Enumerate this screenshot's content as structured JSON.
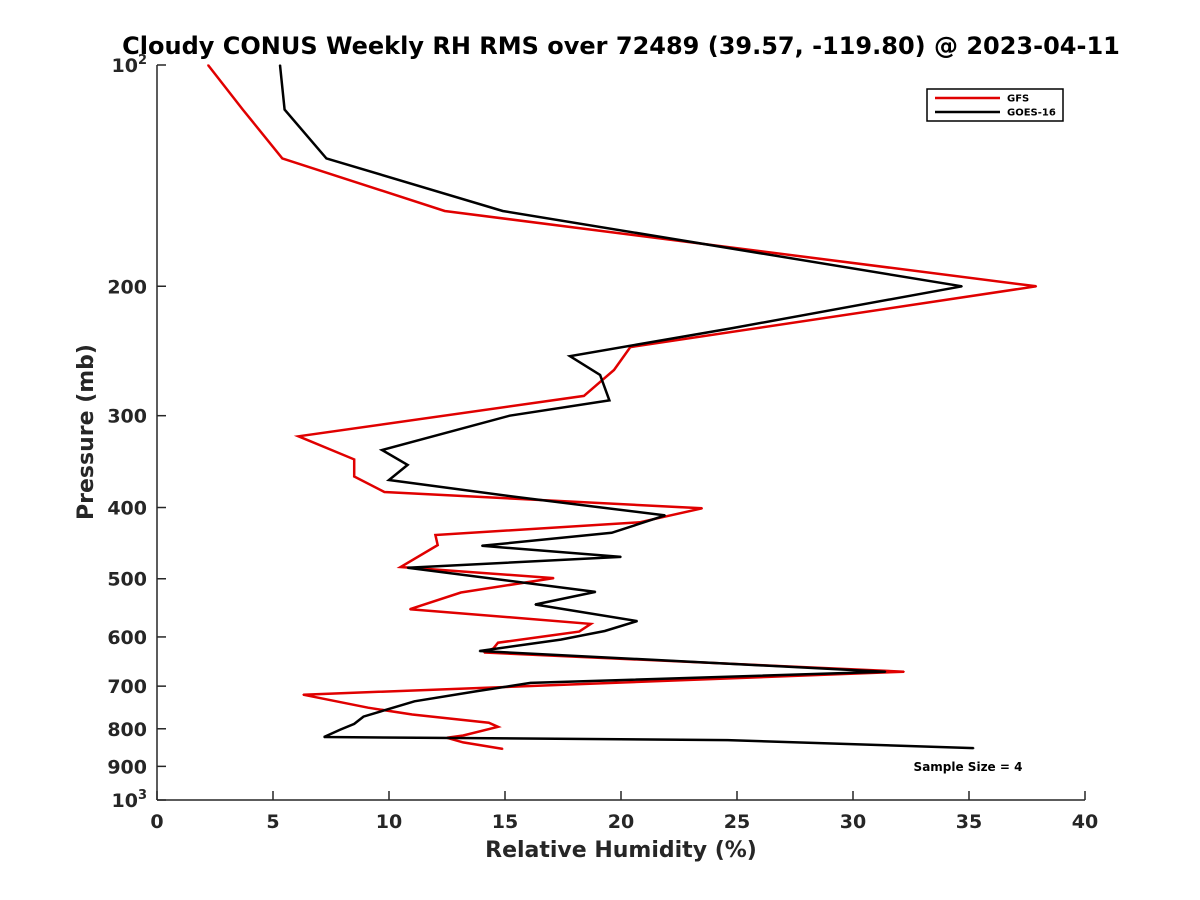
{
  "chart_data": {
    "type": "line",
    "title": "Cloudy CONUS Weekly RH RMS over 72489 (39.57, -119.80) @ 2023-04-11",
    "xlabel": "Relative Humidity (%)",
    "ylabel": "Pressure (mb)",
    "xlim": [
      0,
      40
    ],
    "ylim": [
      100,
      1000
    ],
    "y_scale": "log",
    "y_reversed": true,
    "x_ticks": [
      "0",
      "5",
      "10",
      "15",
      "20",
      "25",
      "30",
      "35",
      "40"
    ],
    "y_ticks": [
      {
        "value": 100,
        "base": "10",
        "exp": "2"
      },
      {
        "value": 200,
        "label": "200"
      },
      {
        "value": 300,
        "label": "300"
      },
      {
        "value": 400,
        "label": "400"
      },
      {
        "value": 500,
        "label": "500"
      },
      {
        "value": 600,
        "label": "600"
      },
      {
        "value": 700,
        "label": "700"
      },
      {
        "value": 800,
        "label": "800"
      },
      {
        "value": 900,
        "label": "900"
      },
      {
        "value": 1000,
        "base": "10",
        "exp": "3"
      }
    ],
    "grid": false,
    "legend_position": "top-right",
    "annotation": "Sample Size = 4",
    "series": [
      {
        "name": "GFS",
        "color": "#e00000",
        "points": [
          [
            2.2,
            100
          ],
          [
            3.7,
            115
          ],
          [
            5.4,
            134
          ],
          [
            12.4,
            158
          ],
          [
            37.9,
            200
          ],
          [
            20.4,
            242
          ],
          [
            19.7,
            260
          ],
          [
            18.4,
            282
          ],
          [
            6.1,
            320
          ],
          [
            8.5,
            344
          ],
          [
            8.5,
            363
          ],
          [
            9.8,
            381
          ],
          [
            23.5,
            401
          ],
          [
            20.8,
            419
          ],
          [
            12.0,
            436
          ],
          [
            12.1,
            450
          ],
          [
            10.5,
            482
          ],
          [
            17.1,
            499
          ],
          [
            13.1,
            522
          ],
          [
            10.9,
            550
          ],
          [
            18.7,
            576
          ],
          [
            18.2,
            590
          ],
          [
            14.7,
            611
          ],
          [
            14.5,
            622
          ],
          [
            14.1,
            630
          ],
          [
            32.2,
            669
          ],
          [
            6.3,
            719
          ],
          [
            9.1,
            749
          ],
          [
            11.0,
            765
          ],
          [
            14.3,
            785
          ],
          [
            14.7,
            795
          ],
          [
            13.2,
            817
          ],
          [
            12.5,
            823
          ],
          [
            13.2,
            835
          ],
          [
            14.9,
            852
          ]
        ]
      },
      {
        "name": "GOES-16",
        "color": "#000000",
        "points": [
          [
            5.3,
            100
          ],
          [
            5.5,
            115
          ],
          [
            7.3,
            134
          ],
          [
            14.9,
            158
          ],
          [
            34.7,
            200
          ],
          [
            24.8,
            228
          ],
          [
            17.8,
            249
          ],
          [
            19.1,
            264
          ],
          [
            19.5,
            286
          ],
          [
            15.2,
            300
          ],
          [
            9.7,
            334
          ],
          [
            10.8,
            350
          ],
          [
            10.0,
            367
          ],
          [
            15.5,
            387
          ],
          [
            21.9,
            410
          ],
          [
            19.6,
            433
          ],
          [
            14.0,
            451
          ],
          [
            20.0,
            467
          ],
          [
            10.8,
            483
          ],
          [
            18.9,
            521
          ],
          [
            16.3,
            542
          ],
          [
            20.7,
            571
          ],
          [
            19.3,
            589
          ],
          [
            17.4,
            605
          ],
          [
            13.9,
            627
          ],
          [
            31.4,
            669
          ],
          [
            16.1,
            693
          ],
          [
            13.8,
            711
          ],
          [
            11.1,
            734
          ],
          [
            8.9,
            770
          ],
          [
            8.5,
            788
          ],
          [
            7.9,
            802
          ],
          [
            7.2,
            821
          ],
          [
            24.6,
            829
          ],
          [
            35.2,
            850
          ]
        ]
      }
    ]
  }
}
